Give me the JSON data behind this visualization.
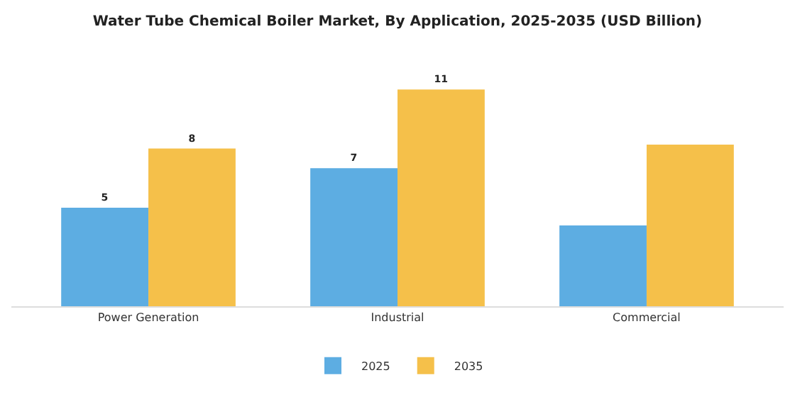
{
  "chart_data": {
    "type": "bar",
    "title": "Water Tube Chemical Boiler Market, By Application, 2025-2035 (USD Billion)",
    "categories": [
      "Power Generation",
      "Industrial",
      "Commercial"
    ],
    "series": [
      {
        "name": "2025",
        "color": "#5dade2",
        "values": [
          5,
          7,
          4.1
        ],
        "value_labels": [
          "5",
          "7",
          null
        ]
      },
      {
        "name": "2035",
        "color": "#f5c04a",
        "values": [
          8,
          11,
          8.2
        ],
        "value_labels": [
          "8",
          "11",
          null
        ]
      }
    ],
    "legend": "bottom"
  }
}
